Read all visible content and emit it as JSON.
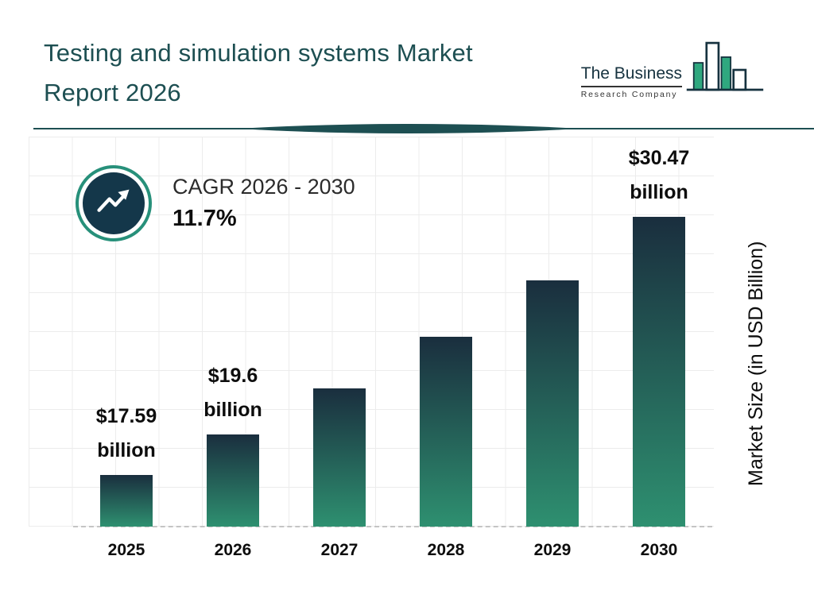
{
  "header": {
    "title_line1": "Testing and simulation systems Market",
    "title_line2": "Report 2026",
    "logo": {
      "name_line1": "The Business",
      "name_line2": "Research Company"
    }
  },
  "cagr_badge": {
    "label": "CAGR 2026 - 2030",
    "value": "11.7%"
  },
  "chart_data": {
    "type": "bar",
    "title": "Testing and simulation systems Market Report 2026",
    "categories": [
      "2025",
      "2026",
      "2027",
      "2028",
      "2029",
      "2030"
    ],
    "values": [
      17.59,
      19.6,
      21.9,
      24.5,
      27.3,
      30.47
    ],
    "value_labels": [
      "$17.59 billion",
      "$19.6 billion",
      "",
      "",
      "",
      "$30.47 billion"
    ],
    "ylabel": "Market Size (in USD Billion)",
    "xlabel": "",
    "baseline_value": 15,
    "grid": true,
    "legend": "none",
    "cagr": "11.7%",
    "colors": {
      "bar_gradient_top": "#1a2e3e",
      "bar_gradient_bottom": "#2e9070",
      "title": "#1d4f52",
      "accent_ring": "#27907a",
      "badge_circle": "#14374a",
      "logo_green": "#2fa87f",
      "logo_outline": "#16323f"
    }
  }
}
